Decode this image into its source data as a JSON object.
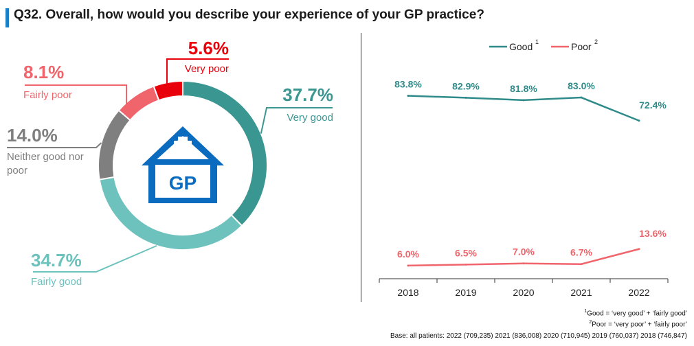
{
  "title": "Q32. Overall, how would you describe your experience of your GP practice?",
  "icon": {
    "name": "gp-house-icon",
    "text": "GP",
    "color": "#0a6bbf"
  },
  "chart_data": [
    {
      "type": "pie",
      "style": "donut",
      "slices": [
        {
          "label": "Very good",
          "value": 37.7,
          "display": "37.7%",
          "color": "#3a9691"
        },
        {
          "label": "Fairly good",
          "value": 34.7,
          "display": "34.7%",
          "color": "#6dc2bd"
        },
        {
          "label": "Neither good nor poor",
          "value": 14.0,
          "display": "14.0%",
          "color": "#7f7f7f"
        },
        {
          "label": "Fairly poor",
          "value": 8.1,
          "display": "8.1%",
          "color": "#f0646b"
        },
        {
          "label": "Very poor",
          "value": 5.6,
          "display": "5.6%",
          "color": "#e8000b"
        }
      ]
    },
    {
      "type": "line",
      "x": [
        "2018",
        "2019",
        "2020",
        "2021",
        "2022"
      ],
      "series": [
        {
          "name": "Good",
          "superscript": "1",
          "values": [
            83.8,
            82.9,
            81.8,
            83.0,
            72.4
          ],
          "labels": [
            "83.8%",
            "82.9%",
            "81.8%",
            "83.0%",
            "72.4%"
          ],
          "color": "#2e8b8a"
        },
        {
          "name": "Poor",
          "superscript": "2",
          "values": [
            6.0,
            6.5,
            7.0,
            6.7,
            13.6
          ],
          "labels": [
            "6.0%",
            "6.5%",
            "7.0%",
            "6.7%",
            "13.6%"
          ],
          "color": "#f0646b"
        }
      ],
      "ylim": [
        0,
        100
      ],
      "legend": "top-center",
      "grid": false
    }
  ],
  "footnotes": {
    "note1_sup": "1",
    "note1": "Good = ‘very good’ + ‘fairly good’",
    "note2_sup": "2",
    "note2": "Poor = ‘very poor’ + ‘fairly poor’",
    "base": "Base: all patients: 2022 (709,235) 2021 (836,008) 2020 (710,945) 2019 (760,037) 2018 (746,847)"
  }
}
